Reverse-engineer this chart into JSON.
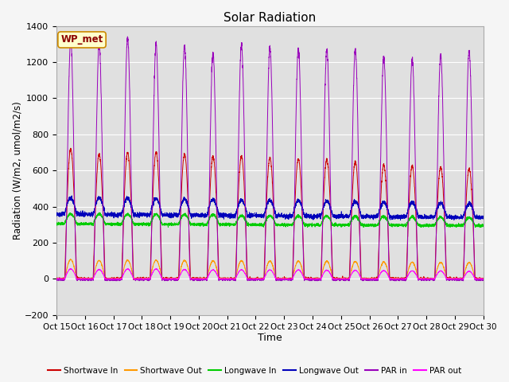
{
  "title": "Solar Radiation",
  "xlabel": "Time",
  "ylabel": "Radiation (W/m2, umol/m2/s)",
  "ylim": [
    -200,
    1400
  ],
  "xlim": [
    0,
    15
  ],
  "plot_bg_color": "#e0e0e0",
  "fig_bg_color": "#f5f5f5",
  "grid_color": "white",
  "label_box": "WP_met",
  "x_tick_labels": [
    "Oct 15",
    "Oct 16",
    "Oct 17",
    "Oct 18",
    "Oct 19",
    "Oct 20",
    "Oct 21",
    "Oct 22",
    "Oct 23",
    "Oct 24",
    "Oct 25",
    "Oct 26",
    "Oct 27",
    "Oct 28",
    "Oct 29",
    "Oct 30"
  ],
  "series_colors": {
    "shortwave_in": "#cc0000",
    "shortwave_out": "#ff9900",
    "longwave_in": "#00cc00",
    "longwave_out": "#0000bb",
    "par_in": "#9900bb",
    "par_out": "#ff00ff"
  },
  "legend_labels": [
    "Shortwave In",
    "Shortwave Out",
    "Longwave In",
    "Longwave Out",
    "PAR in",
    "PAR out"
  ]
}
